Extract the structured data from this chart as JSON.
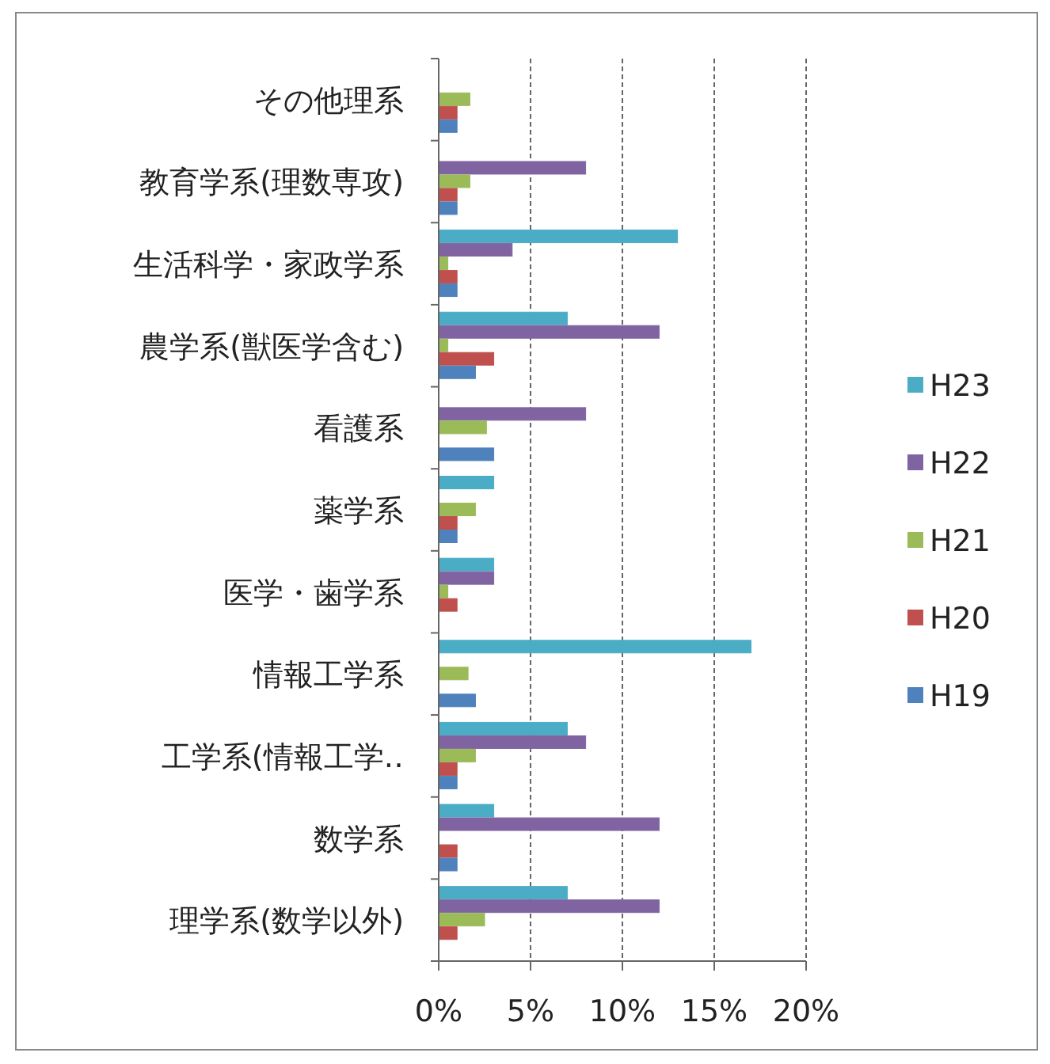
{
  "chart_data": {
    "type": "bar",
    "orientation": "horizontal",
    "categories": [
      "その他理系",
      "教育学系(理数専攻)",
      "生活科学・家政学系",
      "農学系(獣医学含む)",
      "看護系",
      "薬学系",
      "医学・歯学系",
      "情報工学系",
      "工学系(情報工学‥",
      "数学系",
      "理学系(数学以外)"
    ],
    "series": [
      {
        "name": "H23",
        "color": "#4bacc6",
        "values": [
          0,
          0,
          13,
          7,
          0,
          3,
          3,
          17,
          7,
          3,
          7
        ]
      },
      {
        "name": "H22",
        "color": "#8064a2",
        "values": [
          0,
          8,
          4,
          12,
          8,
          0,
          3,
          0,
          8,
          12,
          12
        ]
      },
      {
        "name": "H21",
        "color": "#9bbb59",
        "values": [
          1.7,
          1.7,
          0.5,
          0.5,
          2.6,
          2,
          0.5,
          1.6,
          2,
          0,
          2.5
        ]
      },
      {
        "name": "H20",
        "color": "#c0504d",
        "values": [
          1,
          1,
          1,
          3,
          0,
          1,
          1,
          0,
          1,
          1,
          1
        ]
      },
      {
        "name": "H19",
        "color": "#4f81bd",
        "values": [
          1,
          1,
          1,
          2,
          3,
          1,
          0,
          2,
          1,
          1,
          0
        ]
      }
    ],
    "xlim": [
      0,
      20
    ],
    "xticks": [
      {
        "value": 0,
        "label": "0%"
      },
      {
        "value": 5,
        "label": "5%"
      },
      {
        "value": 10,
        "label": "10%"
      },
      {
        "value": 15,
        "label": "15%"
      },
      {
        "value": 20,
        "label": "20%"
      }
    ],
    "grid": "x",
    "legend": "right"
  }
}
